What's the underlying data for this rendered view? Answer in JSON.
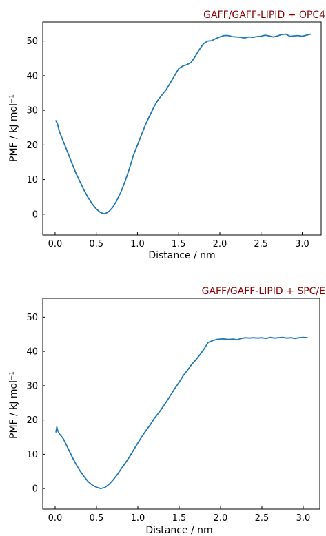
{
  "chart_data": [
    {
      "type": "line",
      "title": "GAFF/GAFF-LIPID + OPC4",
      "title_color": "#8B0000",
      "xlabel": "Distance / nm",
      "ylabel": "PMF / kJ mol⁻¹",
      "xlim": [
        -0.15,
        3.23
      ],
      "ylim": [
        -6,
        55.5
      ],
      "xticks": [
        0.0,
        0.5,
        1.0,
        1.5,
        2.0,
        2.5,
        3.0
      ],
      "xtick_labels": [
        "0.0",
        "0.5",
        "1.0",
        "1.5",
        "2.0",
        "2.5",
        "3.0"
      ],
      "yticks": [
        0,
        10,
        20,
        30,
        40,
        50
      ],
      "ytick_labels": [
        "0",
        "10",
        "20",
        "30",
        "40",
        "50"
      ],
      "grid": false,
      "series": [
        {
          "color": "#1f77b4",
          "x": [
            0.01,
            0.03,
            0.05,
            0.1,
            0.15,
            0.2,
            0.25,
            0.3,
            0.35,
            0.4,
            0.45,
            0.5,
            0.55,
            0.6,
            0.65,
            0.7,
            0.75,
            0.8,
            0.85,
            0.9,
            0.95,
            1.0,
            1.05,
            1.1,
            1.15,
            1.2,
            1.25,
            1.3,
            1.35,
            1.4,
            1.45,
            1.5,
            1.55,
            1.6,
            1.65,
            1.7,
            1.75,
            1.8,
            1.85,
            1.9,
            1.95,
            2.0,
            2.05,
            2.1,
            2.15,
            2.2,
            2.25,
            2.3,
            2.35,
            2.4,
            2.45,
            2.5,
            2.55,
            2.6,
            2.65,
            2.7,
            2.75,
            2.8,
            2.85,
            2.9,
            2.95,
            3.0,
            3.05,
            3.1
          ],
          "y": [
            27.0,
            26.0,
            24.0,
            21.0,
            18.0,
            15.0,
            12.0,
            9.5,
            7.0,
            4.8,
            3.0,
            1.5,
            0.5,
            0.1,
            0.7,
            2.0,
            4.0,
            6.5,
            9.5,
            13.0,
            17.0,
            20.0,
            23.0,
            26.0,
            28.5,
            31.0,
            33.0,
            34.5,
            36.0,
            38.0,
            40.0,
            42.0,
            42.8,
            43.2,
            43.8,
            45.5,
            47.5,
            49.2,
            50.0,
            50.1,
            50.7,
            51.2,
            51.6,
            51.6,
            51.3,
            51.2,
            51.1,
            50.9,
            51.2,
            51.1,
            51.3,
            51.4,
            51.7,
            51.5,
            51.2,
            51.5,
            51.9,
            52.0,
            51.4,
            51.5,
            51.6,
            51.4,
            51.7,
            52.0
          ]
        }
      ]
    },
    {
      "type": "line",
      "title": "GAFF/GAFF-LIPID + SPC/E",
      "title_color": "#8B0000",
      "xlabel": "Distance / nm",
      "ylabel": "PMF / kJ mol⁻¹",
      "xlim": [
        -0.15,
        3.2
      ],
      "ylim": [
        -6,
        55.5
      ],
      "xticks": [
        0.0,
        0.5,
        1.0,
        1.5,
        2.0,
        2.5,
        3.0
      ],
      "xtick_labels": [
        "0.0",
        "0.5",
        "1.0",
        "1.5",
        "2.0",
        "2.5",
        "3.0"
      ],
      "yticks": [
        0,
        10,
        20,
        30,
        40,
        50
      ],
      "ytick_labels": [
        "0",
        "10",
        "20",
        "30",
        "40",
        "50"
      ],
      "grid": false,
      "series": [
        {
          "color": "#1f77b4",
          "x": [
            0.01,
            0.02,
            0.03,
            0.05,
            0.1,
            0.15,
            0.2,
            0.25,
            0.3,
            0.35,
            0.4,
            0.45,
            0.5,
            0.55,
            0.6,
            0.65,
            0.7,
            0.75,
            0.8,
            0.85,
            0.9,
            0.95,
            1.0,
            1.05,
            1.1,
            1.15,
            1.2,
            1.25,
            1.3,
            1.35,
            1.4,
            1.45,
            1.5,
            1.55,
            1.6,
            1.65,
            1.7,
            1.75,
            1.8,
            1.85,
            1.9,
            1.95,
            2.0,
            2.02,
            2.05,
            2.1,
            2.15,
            2.2,
            2.25,
            2.3,
            2.35,
            2.4,
            2.45,
            2.5,
            2.55,
            2.6,
            2.65,
            2.7,
            2.75,
            2.8,
            2.85,
            2.9,
            2.95,
            3.0,
            3.05
          ],
          "y": [
            16.5,
            18.0,
            17.0,
            16.0,
            14.5,
            12.0,
            9.5,
            7.2,
            5.2,
            3.5,
            2.0,
            1.0,
            0.4,
            0.0,
            0.3,
            1.2,
            2.5,
            4.0,
            5.8,
            7.5,
            9.3,
            11.3,
            13.3,
            15.2,
            17.0,
            18.6,
            20.5,
            22.0,
            23.7,
            25.5,
            27.4,
            29.3,
            31.0,
            33.0,
            34.5,
            36.2,
            37.5,
            39.0,
            40.7,
            42.6,
            43.1,
            43.5,
            43.6,
            43.7,
            43.6,
            43.5,
            43.6,
            43.4,
            43.8,
            44.0,
            43.9,
            44.0,
            43.9,
            44.0,
            43.8,
            44.1,
            43.9,
            44.0,
            44.1,
            43.9,
            44.0,
            43.8,
            44.0,
            44.1,
            44.0
          ]
        }
      ]
    }
  ]
}
